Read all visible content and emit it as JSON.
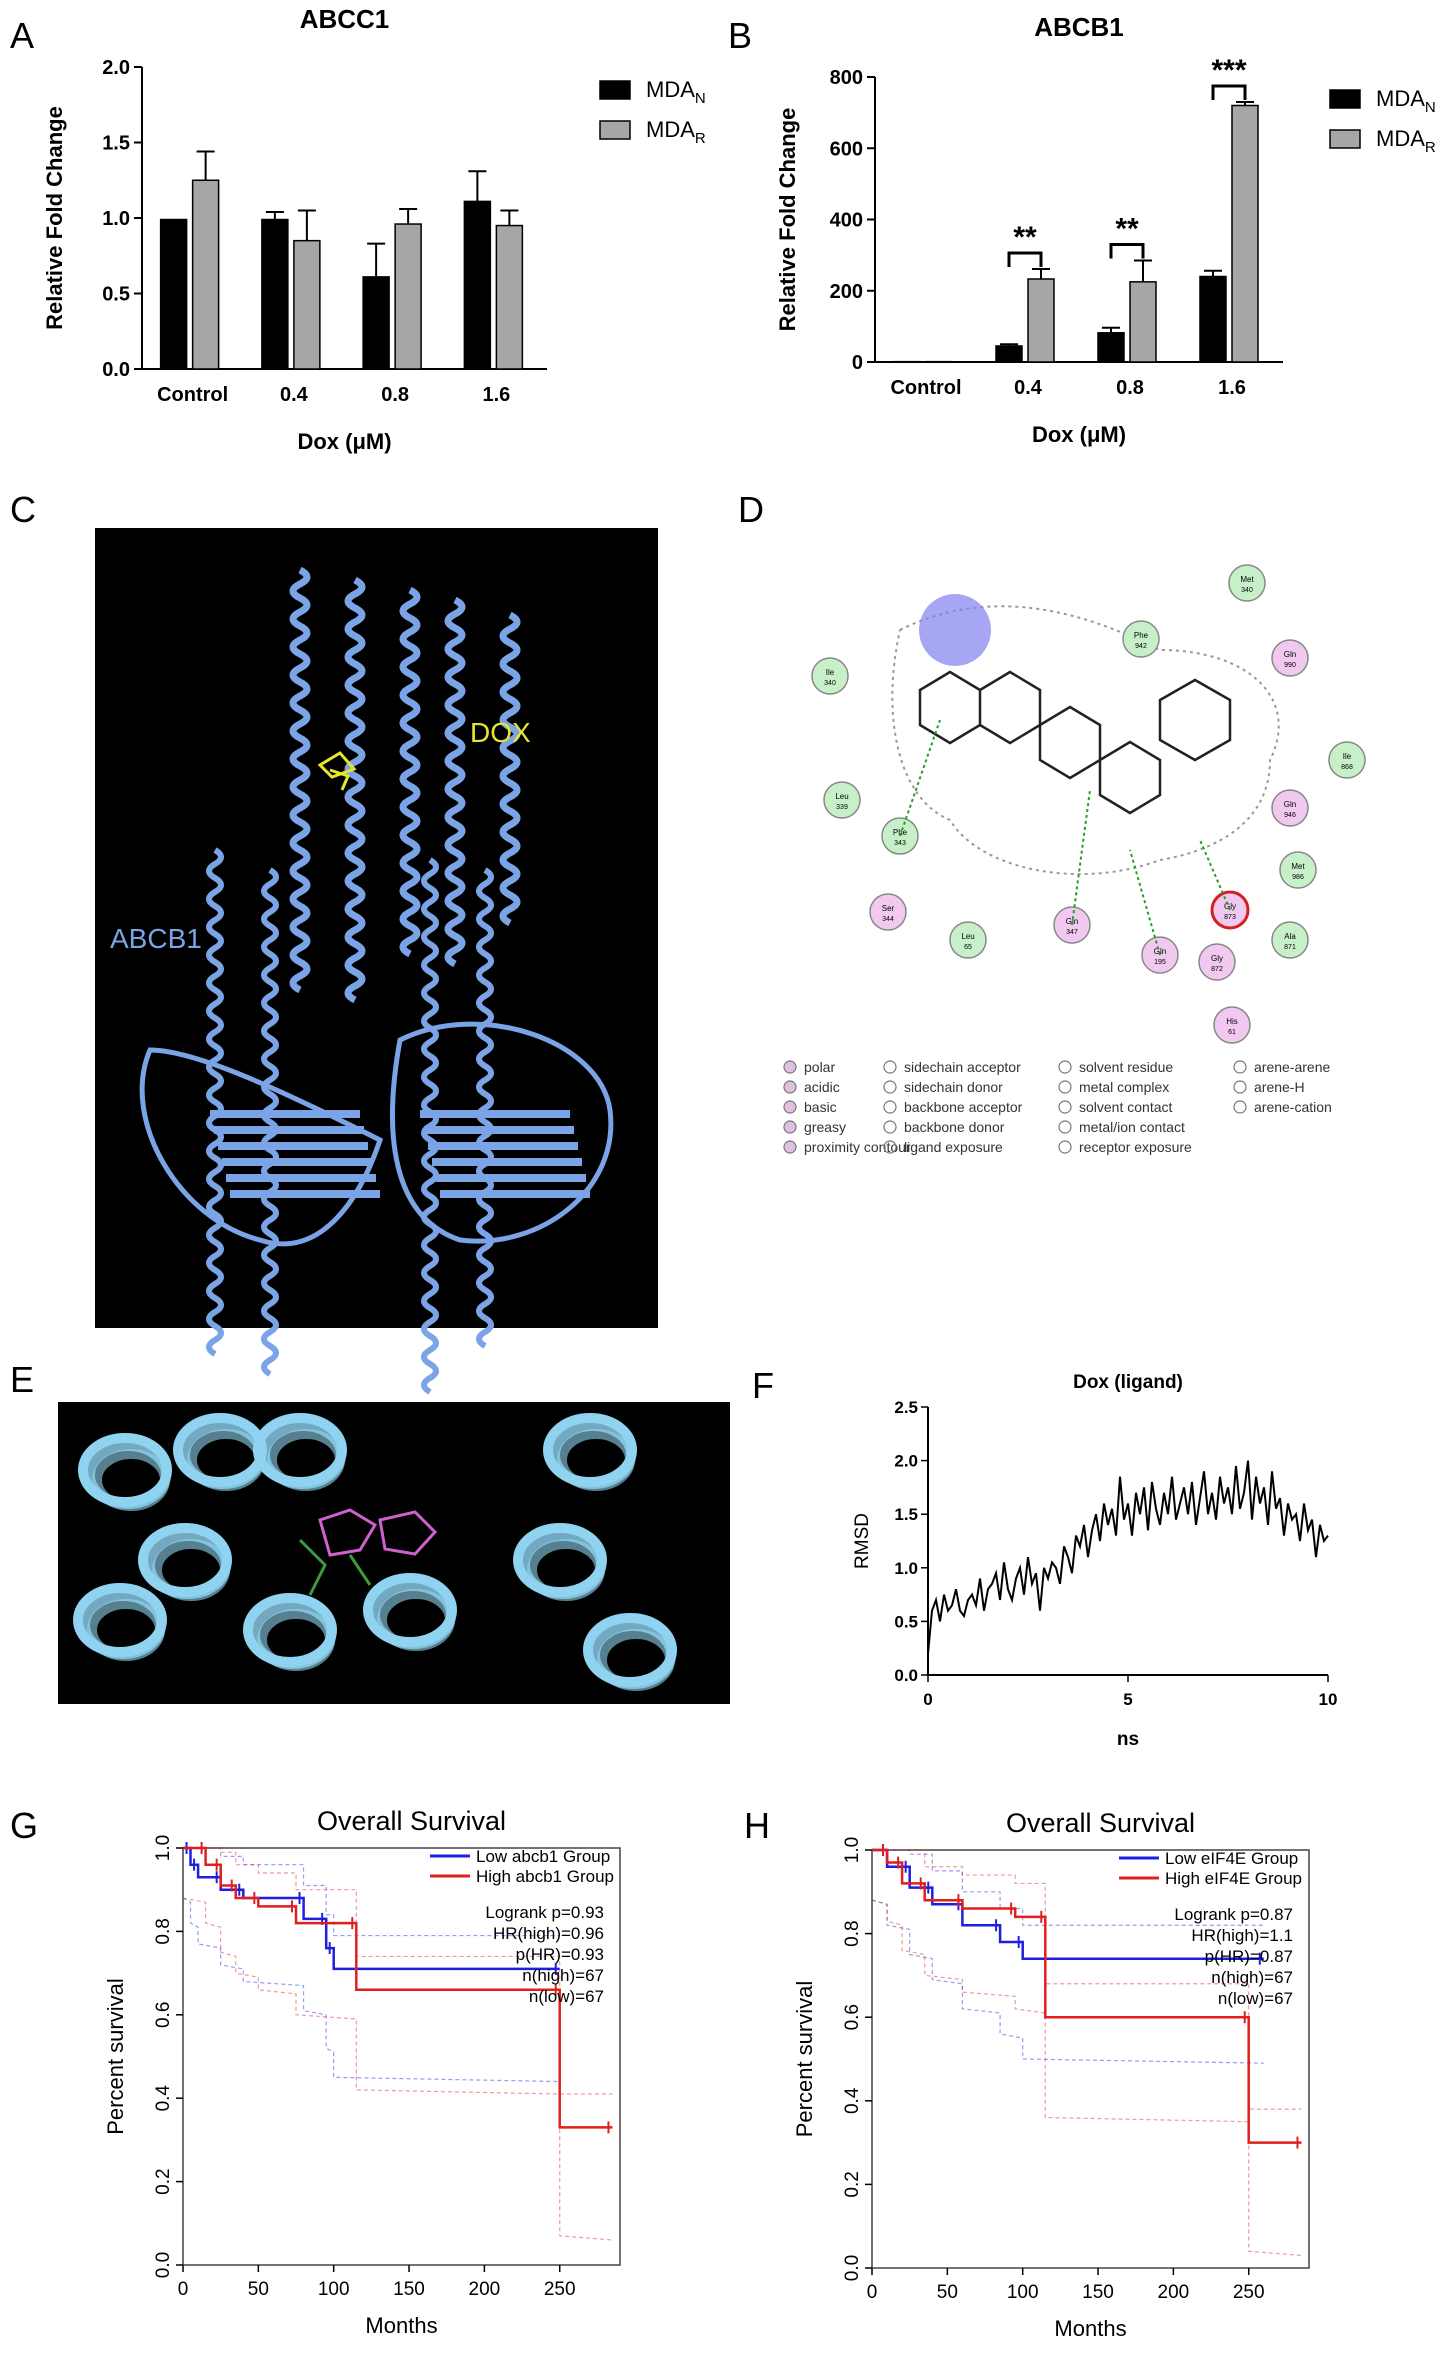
{
  "panel_letters": [
    "A",
    "B",
    "C",
    "D",
    "E",
    "F",
    "G",
    "H"
  ],
  "chart_data": [
    {
      "id": "A",
      "type": "bar",
      "title": "ABCC1",
      "xlabel": "Dox (μM)",
      "ylabel": "Relative Fold Change",
      "categories": [
        "Control",
        "0.4",
        "0.8",
        "1.6"
      ],
      "ylim": [
        0,
        2.0
      ],
      "yticks": [
        "0.0",
        "0.5",
        "1.0",
        "1.5",
        "2.0"
      ],
      "series": [
        {
          "name": "MDA",
          "subscript": "N",
          "color": "#000000",
          "values": [
            0.99,
            0.99,
            0.61,
            1.11
          ],
          "errors": [
            0.0,
            0.05,
            0.22,
            0.2
          ]
        },
        {
          "name": "MDA",
          "subscript": "R",
          "color": "#a6a6a6",
          "values": [
            1.25,
            0.85,
            0.96,
            0.95
          ],
          "errors": [
            0.19,
            0.2,
            0.1,
            0.1
          ]
        }
      ],
      "legend": "right"
    },
    {
      "id": "B",
      "type": "bar",
      "title": "ABCB1",
      "xlabel": "Dox (μM)",
      "ylabel": "Relative Fold Change",
      "categories": [
        "Control",
        "0.4",
        "0.8",
        "1.6"
      ],
      "ylim": [
        0,
        800
      ],
      "yticks": [
        "0",
        "200",
        "400",
        "600",
        "800"
      ],
      "series": [
        {
          "name": "MDA",
          "subscript": "N",
          "color": "#000000",
          "values": [
            1,
            45,
            82,
            240
          ],
          "errors": [
            0,
            5,
            14,
            16
          ]
        },
        {
          "name": "MDA",
          "subscript": "R",
          "color": "#a6a6a6",
          "values": [
            1,
            233,
            225,
            720
          ],
          "errors": [
            0,
            28,
            60,
            10
          ]
        }
      ],
      "significance": [
        {
          "category": "0.4",
          "label": "**"
        },
        {
          "category": "0.8",
          "label": "**"
        },
        {
          "category": "1.6",
          "label": "***"
        }
      ],
      "legend": "right"
    },
    {
      "id": "F",
      "type": "line",
      "title": "Dox (ligand)",
      "xlabel": "ns",
      "ylabel": "RMSD",
      "xlim": [
        0,
        10
      ],
      "ylim": [
        0,
        2.5
      ],
      "xticks": [
        "0",
        "5",
        "10"
      ],
      "yticks": [
        "0.0",
        "0.5",
        "1.0",
        "1.5",
        "2.0",
        "2.5"
      ],
      "x": [
        0,
        0.1,
        0.2,
        0.3,
        0.4,
        0.5,
        0.6,
        0.7,
        0.8,
        0.9,
        1.0,
        1.1,
        1.2,
        1.3,
        1.4,
        1.5,
        1.6,
        1.7,
        1.8,
        1.9,
        2.0,
        2.1,
        2.2,
        2.3,
        2.4,
        2.5,
        2.6,
        2.7,
        2.8,
        2.9,
        3.0,
        3.1,
        3.2,
        3.3,
        3.4,
        3.5,
        3.6,
        3.7,
        3.8,
        3.9,
        4.0,
        4.1,
        4.2,
        4.3,
        4.4,
        4.5,
        4.6,
        4.7,
        4.8,
        4.9,
        5.0,
        5.1,
        5.2,
        5.3,
        5.4,
        5.5,
        5.6,
        5.7,
        5.8,
        5.9,
        6.0,
        6.1,
        6.2,
        6.3,
        6.4,
        6.5,
        6.6,
        6.7,
        6.8,
        6.9,
        7.0,
        7.1,
        7.2,
        7.3,
        7.4,
        7.5,
        7.6,
        7.7,
        7.8,
        7.9,
        8.0,
        8.1,
        8.2,
        8.3,
        8.4,
        8.5,
        8.6,
        8.7,
        8.8,
        8.9,
        9.0,
        9.1,
        9.2,
        9.3,
        9.4,
        9.5,
        9.6,
        9.7,
        9.8,
        9.9,
        10.0
      ],
      "y": [
        0.2,
        0.6,
        0.7,
        0.5,
        0.75,
        0.6,
        0.65,
        0.8,
        0.6,
        0.55,
        0.7,
        0.75,
        0.65,
        0.9,
        0.6,
        0.8,
        0.85,
        0.95,
        0.7,
        1.05,
        0.8,
        0.7,
        0.9,
        1.0,
        0.75,
        1.1,
        0.85,
        0.95,
        0.6,
        1.0,
        0.9,
        1.05,
        1.0,
        0.85,
        1.2,
        1.1,
        0.95,
        1.3,
        1.2,
        1.4,
        1.1,
        1.35,
        1.5,
        1.25,
        1.6,
        1.4,
        1.55,
        1.3,
        1.85,
        1.45,
        1.6,
        1.3,
        1.7,
        1.5,
        1.75,
        1.35,
        1.8,
        1.55,
        1.4,
        1.7,
        1.5,
        1.85,
        1.45,
        1.6,
        1.75,
        1.5,
        1.8,
        1.4,
        1.65,
        1.9,
        1.5,
        1.7,
        1.45,
        1.85,
        1.6,
        1.75,
        1.5,
        1.95,
        1.55,
        1.7,
        2.0,
        1.45,
        1.85,
        1.6,
        1.75,
        1.4,
        1.9,
        1.55,
        1.65,
        1.3,
        1.6,
        1.45,
        1.5,
        1.25,
        1.6,
        1.35,
        1.45,
        1.1,
        1.4,
        1.25,
        1.3
      ]
    },
    {
      "id": "G",
      "type": "line",
      "title": "Overall Survival",
      "xlabel": "Months",
      "ylabel": "Percent survival",
      "xlim": [
        0,
        290
      ],
      "ylim": [
        0,
        1.0
      ],
      "xticks": [
        "0",
        "50",
        "100",
        "150",
        "200",
        "250"
      ],
      "yticks": [
        "0.0",
        "0.2",
        "0.4",
        "0.6",
        "0.8",
        "1.0"
      ],
      "series": [
        {
          "name": "Low abcb1 Group",
          "color": "#1f1fe0",
          "x": [
            0,
            5,
            5,
            10,
            10,
            25,
            25,
            40,
            40,
            80,
            80,
            95,
            95,
            100,
            100,
            250
          ],
          "y": [
            1.0,
            1.0,
            0.96,
            0.96,
            0.93,
            0.93,
            0.9,
            0.9,
            0.88,
            0.88,
            0.83,
            0.83,
            0.76,
            0.76,
            0.71,
            0.71
          ]
        },
        {
          "name": "High abcb1 Group",
          "color": "#e01f1f",
          "x": [
            0,
            15,
            15,
            25,
            25,
            35,
            35,
            50,
            50,
            75,
            75,
            115,
            115,
            250,
            250,
            285
          ],
          "y": [
            1.0,
            1.0,
            0.96,
            0.96,
            0.91,
            0.91,
            0.88,
            0.88,
            0.86,
            0.86,
            0.82,
            0.82,
            0.66,
            0.66,
            0.33,
            0.33
          ]
        }
      ],
      "annotations": [
        "Logrank p=0.93",
        "HR(high)=0.96",
        "p(HR)=0.93",
        "n(high)=67",
        "n(low)=67"
      ]
    },
    {
      "id": "H",
      "type": "line",
      "title": "Overall Survival",
      "xlabel": "Months",
      "ylabel": "Percent survival",
      "xlim": [
        0,
        290
      ],
      "ylim": [
        0,
        1.0
      ],
      "xticks": [
        "0",
        "50",
        "100",
        "150",
        "200",
        "250"
      ],
      "yticks": [
        "0.0",
        "0.2",
        "0.4",
        "0.6",
        "0.8",
        "1.0"
      ],
      "series": [
        {
          "name": "Low eIF4E Group",
          "color": "#1f1fe0",
          "x": [
            0,
            10,
            10,
            25,
            25,
            40,
            40,
            60,
            60,
            85,
            85,
            100,
            100,
            260
          ],
          "y": [
            1.0,
            1.0,
            0.96,
            0.96,
            0.91,
            0.91,
            0.87,
            0.87,
            0.82,
            0.82,
            0.78,
            0.78,
            0.74,
            0.74
          ]
        },
        {
          "name": "High eIF4E Group",
          "color": "#e01f1f",
          "x": [
            0,
            10,
            10,
            20,
            20,
            35,
            35,
            60,
            60,
            95,
            95,
            115,
            115,
            250,
            250,
            285
          ],
          "y": [
            1.0,
            1.0,
            0.97,
            0.97,
            0.92,
            0.92,
            0.88,
            0.88,
            0.86,
            0.86,
            0.84,
            0.84,
            0.6,
            0.6,
            0.3,
            0.3
          ]
        }
      ],
      "annotations": [
        "Logrank p=0.87",
        "HR(high)=1.1",
        "p(HR)=0.87",
        "n(high)=67",
        "n(low)=67"
      ]
    }
  ],
  "structure_C": {
    "label_protein": "ABCB1",
    "label_ligand": "DOX",
    "protein_color": "#7aa4e6",
    "ligand_color": "#e6e62e"
  },
  "interaction_D": {
    "residues": [
      {
        "label": "Met 340",
        "type": "greasy"
      },
      {
        "label": "Phe 942",
        "type": "greasy"
      },
      {
        "label": "Ile 340",
        "type": "greasy"
      },
      {
        "label": "Gln 990",
        "type": "polar"
      },
      {
        "label": "Ile 868",
        "type": "greasy"
      },
      {
        "label": "Leu 339",
        "type": "greasy"
      },
      {
        "label": "Phe 343",
        "type": "greasy"
      },
      {
        "label": "Gln 946",
        "type": "polar"
      },
      {
        "label": "Met 986",
        "type": "greasy"
      },
      {
        "label": "Ser 344",
        "type": "polar"
      },
      {
        "label": "Leu 65",
        "type": "greasy"
      },
      {
        "label": "Gln 347",
        "type": "polar"
      },
      {
        "label": "Gly 873",
        "type": "acidic"
      },
      {
        "label": "Ala 871",
        "type": "greasy"
      },
      {
        "label": "Gln 195",
        "type": "polar"
      },
      {
        "label": "Gly 872",
        "type": "polar"
      },
      {
        "label": "His 61",
        "type": "polar"
      }
    ],
    "legend": [
      [
        "polar",
        "sidechain acceptor",
        "solvent residue",
        "arene-arene"
      ],
      [
        "acidic",
        "sidechain donor",
        "metal complex",
        "arene-H"
      ],
      [
        "basic",
        "backbone acceptor",
        "solvent contact",
        "arene-cation"
      ],
      [
        "greasy",
        "backbone donor",
        "metal/ion contact",
        ""
      ],
      [
        "proximity contour",
        "ligand exposure",
        "receptor exposure",
        ""
      ]
    ]
  },
  "structure_E": {
    "helix_color": "#8fd3f0",
    "background": "#000000"
  }
}
